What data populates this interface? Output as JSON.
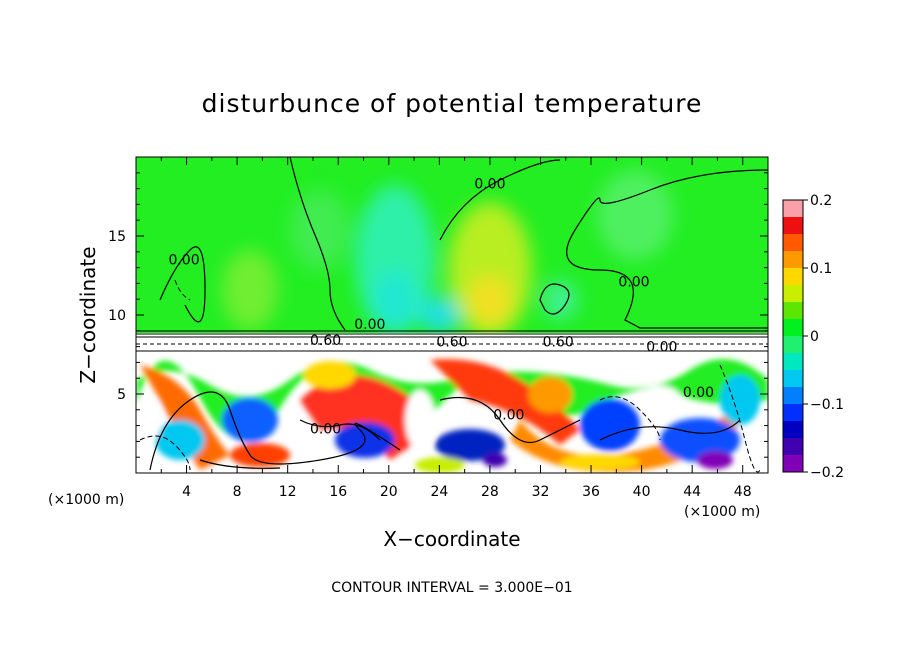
{
  "chart_data": {
    "type": "heatmap",
    "title": "disturbunce of potential temperature",
    "xlabel": "X−coordinate",
    "ylabel": "Z−coordinate",
    "x_unit_label": "(×1000 m)",
    "x_unit_label_right": "(×1000 m)",
    "x_ticks": [
      4,
      8,
      12,
      16,
      20,
      24,
      28,
      32,
      36,
      40,
      44,
      48
    ],
    "x_tick_labels": [
      "4",
      "8",
      "12",
      "16",
      "20",
      "24",
      "28",
      "32",
      "36",
      "40",
      "44",
      "48"
    ],
    "y_ticks": [
      5,
      10,
      15
    ],
    "y_tick_labels": [
      "5",
      "10",
      "15"
    ],
    "xlim": [
      0,
      50
    ],
    "ylim": [
      0,
      20
    ],
    "colorbar": {
      "range": [
        -0.2,
        0.2
      ],
      "tick_values": [
        0.2,
        0.1,
        0,
        -0.1,
        -0.2
      ],
      "tick_labels": [
        "0.2",
        "0.1",
        "0",
        "−0.1",
        "−0.2"
      ],
      "colors": [
        "#f9a0a8",
        "#ee1010",
        "#ff5a00",
        "#ff9900",
        "#ffd800",
        "#c8ee00",
        "#5ce600",
        "#00f020",
        "#20f070",
        "#00e8c0",
        "#00c8f0",
        "#0080ff",
        "#0030ff",
        "#0000c0",
        "#4000b0",
        "#8000b8"
      ]
    },
    "contour_interval_text": "CONTOUR INTERVAL = 3.000E−01",
    "contour_labels": [
      {
        "text": "0.00",
        "x": 28.0,
        "z": 18.0
      },
      {
        "text": "0.00",
        "x": 3.8,
        "z": 13.2
      },
      {
        "text": "0.00",
        "x": 39.4,
        "z": 11.8
      },
      {
        "text": "0.00",
        "x": 18.5,
        "z": 9.1
      },
      {
        "text": "0.60",
        "x": 15.0,
        "z": 8.1
      },
      {
        "text": "0.60",
        "x": 25.0,
        "z": 8.0
      },
      {
        "text": "0.60",
        "x": 33.4,
        "z": 8.0
      },
      {
        "text": "0.00",
        "x": 41.6,
        "z": 7.7
      },
      {
        "text": "0.00",
        "x": 44.5,
        "z": 4.8
      },
      {
        "text": "0.00",
        "x": 29.5,
        "z": 3.4
      },
      {
        "text": "0.00",
        "x": 15.0,
        "z": 2.5
      }
    ]
  }
}
